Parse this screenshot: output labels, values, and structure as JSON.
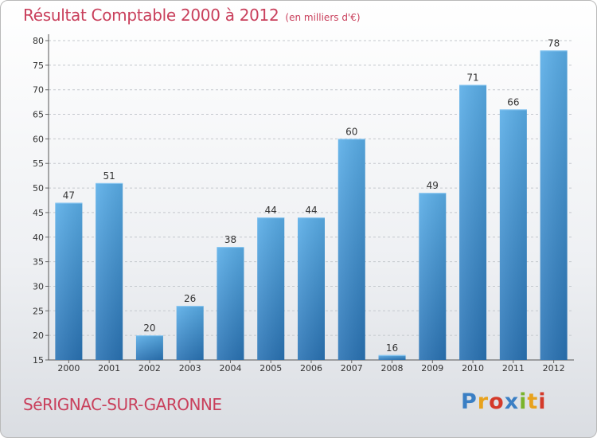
{
  "chart_data": {
    "type": "bar",
    "title": "Résultat Comptable 2000 à 2012",
    "subtitle": "(en milliers d'€)",
    "categories": [
      "2000",
      "2001",
      "2002",
      "2003",
      "2004",
      "2005",
      "2006",
      "2007",
      "2008",
      "2009",
      "2010",
      "2011",
      "2012"
    ],
    "values": [
      47,
      51,
      20,
      26,
      38,
      44,
      44,
      60,
      16,
      49,
      71,
      66,
      78
    ],
    "ylim": [
      15,
      80
    ],
    "yticks": [
      15,
      20,
      25,
      30,
      35,
      40,
      45,
      50,
      55,
      60,
      65,
      70,
      75,
      80
    ],
    "xlabel": "",
    "ylabel": "",
    "grid": "horizontal-dashed",
    "bar_color": "#3b8fd2"
  },
  "footer": {
    "place": "SéRIGNAC-SUR-GARONNE",
    "brand": "Proxiti",
    "brand_colors": [
      "#3a7fc4",
      "#e8a21d",
      "#d43a2a",
      "#3a7fc4",
      "#7ab42c",
      "#e8a21d",
      "#d43a2a"
    ]
  }
}
